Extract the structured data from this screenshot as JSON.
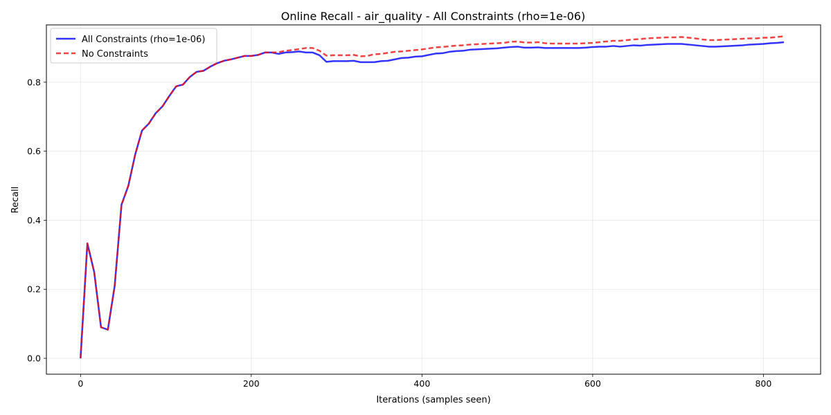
{
  "chart_data": {
    "type": "line",
    "title": "Online Recall - air_quality - All Constraints (rho=1e-06)",
    "xlabel": "Iterations (samples seen)",
    "ylabel": "Recall",
    "xlim": [
      -40,
      867
    ],
    "ylim": [
      -0.046,
      0.966
    ],
    "xticks": [
      0,
      200,
      400,
      600,
      800
    ],
    "yticks": [
      0.0,
      0.2,
      0.4,
      0.6,
      0.8
    ],
    "xtick_labels": [
      "0",
      "200",
      "400",
      "600",
      "800"
    ],
    "ytick_labels": [
      "0.0",
      "0.2",
      "0.4",
      "0.6",
      "0.8"
    ],
    "grid": true,
    "legend_position": "top-left",
    "series": [
      {
        "name": "All Constraints (rho=1e-06)",
        "color": "#0000ff",
        "style": "solid",
        "x": [
          0,
          8,
          16,
          24,
          32,
          40,
          48,
          56,
          64,
          72,
          80,
          88,
          96,
          104,
          112,
          120,
          128,
          136,
          144,
          152,
          160,
          168,
          176,
          184,
          192,
          200,
          208,
          216,
          224,
          232,
          240,
          248,
          256,
          264,
          272,
          280,
          288,
          296,
          304,
          312,
          320,
          328,
          336,
          344,
          352,
          360,
          368,
          376,
          384,
          392,
          400,
          408,
          416,
          424,
          432,
          440,
          448,
          456,
          464,
          472,
          480,
          488,
          496,
          504,
          512,
          520,
          528,
          536,
          544,
          552,
          560,
          568,
          576,
          584,
          592,
          600,
          608,
          616,
          624,
          632,
          640,
          648,
          656,
          664,
          672,
          680,
          688,
          696,
          704,
          712,
          720,
          728,
          736,
          744,
          752,
          760,
          768,
          776,
          784,
          792,
          800,
          808,
          816,
          824
        ],
        "y": [
          0.0,
          0.333,
          0.25,
          0.09,
          0.083,
          0.21,
          0.445,
          0.5,
          0.59,
          0.66,
          0.68,
          0.71,
          0.73,
          0.76,
          0.788,
          0.793,
          0.815,
          0.83,
          0.833,
          0.845,
          0.855,
          0.862,
          0.866,
          0.871,
          0.876,
          0.876,
          0.879,
          0.886,
          0.886,
          0.882,
          0.886,
          0.887,
          0.889,
          0.886,
          0.886,
          0.878,
          0.859,
          0.861,
          0.861,
          0.861,
          0.862,
          0.858,
          0.858,
          0.858,
          0.861,
          0.862,
          0.866,
          0.87,
          0.871,
          0.874,
          0.875,
          0.879,
          0.883,
          0.884,
          0.888,
          0.89,
          0.891,
          0.894,
          0.895,
          0.896,
          0.897,
          0.898,
          0.9,
          0.902,
          0.903,
          0.9,
          0.9,
          0.901,
          0.899,
          0.899,
          0.899,
          0.899,
          0.899,
          0.899,
          0.9,
          0.902,
          0.903,
          0.903,
          0.905,
          0.903,
          0.905,
          0.907,
          0.906,
          0.908,
          0.909,
          0.91,
          0.911,
          0.911,
          0.911,
          0.909,
          0.907,
          0.905,
          0.903,
          0.903,
          0.904,
          0.905,
          0.906,
          0.907,
          0.909,
          0.91,
          0.911,
          0.913,
          0.914,
          0.916
        ]
      },
      {
        "name": "No Constraints",
        "color": "#ee1111",
        "style": "dashed",
        "x": [
          0,
          8,
          16,
          24,
          32,
          40,
          48,
          56,
          64,
          72,
          80,
          88,
          96,
          104,
          112,
          120,
          128,
          136,
          144,
          152,
          160,
          168,
          176,
          184,
          192,
          200,
          208,
          216,
          224,
          232,
          240,
          248,
          256,
          264,
          272,
          280,
          288,
          296,
          304,
          312,
          320,
          328,
          336,
          344,
          352,
          360,
          368,
          376,
          384,
          392,
          400,
          408,
          416,
          424,
          432,
          440,
          448,
          456,
          464,
          472,
          480,
          488,
          496,
          504,
          512,
          520,
          528,
          536,
          544,
          552,
          560,
          568,
          576,
          584,
          592,
          600,
          608,
          616,
          624,
          632,
          640,
          648,
          656,
          664,
          672,
          680,
          688,
          696,
          704,
          712,
          720,
          728,
          736,
          744,
          752,
          760,
          768,
          776,
          784,
          792,
          800,
          808,
          816,
          824
        ],
        "y": [
          0.0,
          0.333,
          0.25,
          0.09,
          0.083,
          0.21,
          0.445,
          0.5,
          0.59,
          0.66,
          0.68,
          0.71,
          0.73,
          0.76,
          0.788,
          0.793,
          0.815,
          0.83,
          0.833,
          0.845,
          0.855,
          0.862,
          0.866,
          0.871,
          0.876,
          0.876,
          0.879,
          0.886,
          0.886,
          0.887,
          0.891,
          0.893,
          0.896,
          0.899,
          0.899,
          0.891,
          0.877,
          0.878,
          0.878,
          0.878,
          0.879,
          0.875,
          0.876,
          0.881,
          0.882,
          0.885,
          0.888,
          0.889,
          0.891,
          0.893,
          0.895,
          0.898,
          0.901,
          0.902,
          0.904,
          0.906,
          0.907,
          0.909,
          0.91,
          0.911,
          0.912,
          0.913,
          0.914,
          0.917,
          0.918,
          0.915,
          0.915,
          0.916,
          0.913,
          0.912,
          0.912,
          0.912,
          0.912,
          0.912,
          0.913,
          0.914,
          0.916,
          0.918,
          0.92,
          0.92,
          0.922,
          0.924,
          0.925,
          0.927,
          0.928,
          0.929,
          0.93,
          0.93,
          0.931,
          0.929,
          0.927,
          0.924,
          0.922,
          0.922,
          0.923,
          0.924,
          0.925,
          0.926,
          0.927,
          0.927,
          0.929,
          0.929,
          0.931,
          0.933
        ]
      }
    ]
  }
}
